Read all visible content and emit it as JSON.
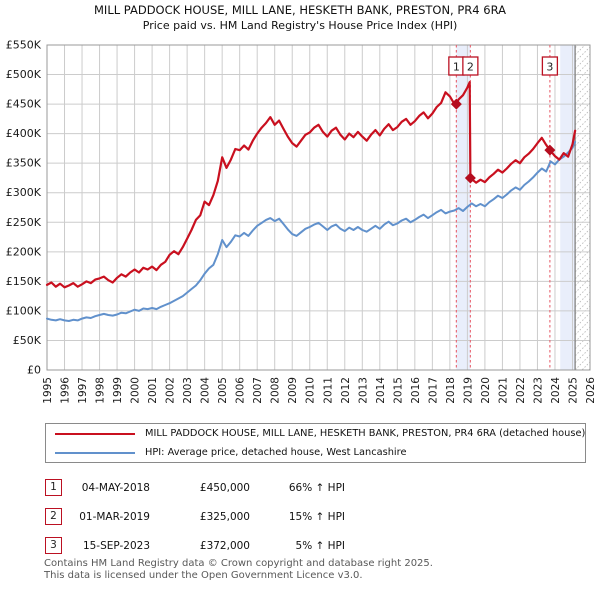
{
  "title": {
    "line1": "MILL PADDOCK HOUSE, MILL LANE, HESKETH BANK, PRESTON, PR4 6RA",
    "line2": "Price paid vs. HM Land Registry's House Price Index (HPI)"
  },
  "chart_data": {
    "type": "line",
    "xlim": [
      1995,
      2026
    ],
    "ylim": [
      0,
      550
    ],
    "grid": true,
    "x_ticks": [
      "1995",
      "1996",
      "1997",
      "1998",
      "1999",
      "2000",
      "2001",
      "2002",
      "2003",
      "2004",
      "2005",
      "2006",
      "2007",
      "2008",
      "2009",
      "2010",
      "2011",
      "2012",
      "2013",
      "2014",
      "2015",
      "2016",
      "2017",
      "2018",
      "2019",
      "2020",
      "2021",
      "2022",
      "2023",
      "2024",
      "2025",
      "2026"
    ],
    "x_tick_values": [
      1995,
      1996,
      1997,
      1998,
      1999,
      2000,
      2001,
      2002,
      2003,
      2004,
      2005,
      2006,
      2007,
      2008,
      2009,
      2010,
      2011,
      2012,
      2013,
      2014,
      2015,
      2016,
      2017,
      2018,
      2019,
      2020,
      2021,
      2022,
      2023,
      2024,
      2025,
      2026
    ],
    "y_ticks": [
      "£0",
      "£50K",
      "£100K",
      "£150K",
      "£200K",
      "£250K",
      "£300K",
      "£350K",
      "£400K",
      "£450K",
      "£500K",
      "£550K"
    ],
    "y_tick_values": [
      0,
      50,
      100,
      150,
      200,
      250,
      300,
      350,
      400,
      450,
      500,
      550
    ],
    "colors": {
      "price_line": "#c9101f",
      "hpi_line": "#6191cc",
      "marker": "#b50d1f",
      "dashed": "#e8636f",
      "band": "#e9eefb",
      "grid": "#cccccc",
      "frame": "#999999",
      "hatch": "#bbbbbb",
      "hatch_edge": "#8a8a8a"
    },
    "series": [
      {
        "name": "price-paid",
        "color": "#c9101f",
        "width": 2.2,
        "points": [
          [
            1995.0,
            144
          ],
          [
            1995.25,
            148
          ],
          [
            1995.5,
            141
          ],
          [
            1995.75,
            146
          ],
          [
            1996.0,
            140
          ],
          [
            1996.25,
            143
          ],
          [
            1996.5,
            147
          ],
          [
            1996.75,
            141
          ],
          [
            1997.0,
            145
          ],
          [
            1997.25,
            150
          ],
          [
            1997.5,
            147
          ],
          [
            1997.75,
            153
          ],
          [
            1998.0,
            155
          ],
          [
            1998.25,
            158
          ],
          [
            1998.5,
            152
          ],
          [
            1998.75,
            148
          ],
          [
            1999.0,
            156
          ],
          [
            1999.25,
            162
          ],
          [
            1999.5,
            158
          ],
          [
            1999.75,
            165
          ],
          [
            2000.0,
            170
          ],
          [
            2000.25,
            165
          ],
          [
            2000.5,
            173
          ],
          [
            2000.75,
            170
          ],
          [
            2001.0,
            175
          ],
          [
            2001.25,
            169
          ],
          [
            2001.5,
            178
          ],
          [
            2001.75,
            183
          ],
          [
            2002.0,
            195
          ],
          [
            2002.25,
            201
          ],
          [
            2002.5,
            196
          ],
          [
            2002.75,
            208
          ],
          [
            2003.0,
            222
          ],
          [
            2003.25,
            237
          ],
          [
            2003.5,
            254
          ],
          [
            2003.75,
            262
          ],
          [
            2004.0,
            285
          ],
          [
            2004.25,
            279
          ],
          [
            2004.5,
            296
          ],
          [
            2004.75,
            320
          ],
          [
            2005.0,
            360
          ],
          [
            2005.25,
            342
          ],
          [
            2005.5,
            356
          ],
          [
            2005.75,
            374
          ],
          [
            2006.0,
            372
          ],
          [
            2006.25,
            380
          ],
          [
            2006.5,
            373
          ],
          [
            2006.75,
            388
          ],
          [
            2007.0,
            400
          ],
          [
            2007.25,
            410
          ],
          [
            2007.5,
            418
          ],
          [
            2007.75,
            428
          ],
          [
            2008.0,
            415
          ],
          [
            2008.25,
            422
          ],
          [
            2008.5,
            408
          ],
          [
            2008.75,
            395
          ],
          [
            2009.0,
            384
          ],
          [
            2009.25,
            378
          ],
          [
            2009.5,
            388
          ],
          [
            2009.75,
            398
          ],
          [
            2010.0,
            402
          ],
          [
            2010.25,
            410
          ],
          [
            2010.5,
            415
          ],
          [
            2010.75,
            403
          ],
          [
            2011.0,
            395
          ],
          [
            2011.25,
            405
          ],
          [
            2011.5,
            410
          ],
          [
            2011.75,
            398
          ],
          [
            2012.0,
            390
          ],
          [
            2012.25,
            400
          ],
          [
            2012.5,
            394
          ],
          [
            2012.75,
            403
          ],
          [
            2013.0,
            395
          ],
          [
            2013.25,
            388
          ],
          [
            2013.5,
            398
          ],
          [
            2013.75,
            406
          ],
          [
            2014.0,
            397
          ],
          [
            2014.25,
            408
          ],
          [
            2014.5,
            416
          ],
          [
            2014.75,
            406
          ],
          [
            2015.0,
            411
          ],
          [
            2015.25,
            420
          ],
          [
            2015.5,
            425
          ],
          [
            2015.75,
            415
          ],
          [
            2016.0,
            421
          ],
          [
            2016.25,
            430
          ],
          [
            2016.5,
            436
          ],
          [
            2016.75,
            426
          ],
          [
            2017.0,
            434
          ],
          [
            2017.25,
            445
          ],
          [
            2017.5,
            452
          ],
          [
            2017.75,
            470
          ],
          [
            2018.0,
            463
          ],
          [
            2018.2,
            453
          ],
          [
            2018.37,
            450
          ],
          [
            2018.5,
            458
          ],
          [
            2018.75,
            465
          ],
          [
            2019.0,
            478
          ],
          [
            2019.13,
            487
          ],
          [
            2019.17,
            325
          ],
          [
            2019.5,
            317
          ],
          [
            2019.75,
            322
          ],
          [
            2020.0,
            318
          ],
          [
            2020.25,
            326
          ],
          [
            2020.5,
            332
          ],
          [
            2020.75,
            339
          ],
          [
            2021.0,
            334
          ],
          [
            2021.25,
            341
          ],
          [
            2021.5,
            349
          ],
          [
            2021.75,
            355
          ],
          [
            2022.0,
            350
          ],
          [
            2022.25,
            360
          ],
          [
            2022.5,
            366
          ],
          [
            2022.75,
            374
          ],
          [
            2023.0,
            384
          ],
          [
            2023.25,
            393
          ],
          [
            2023.5,
            381
          ],
          [
            2023.71,
            372
          ],
          [
            2024.0,
            362
          ],
          [
            2024.25,
            356
          ],
          [
            2024.5,
            367
          ],
          [
            2024.75,
            361
          ],
          [
            2025.0,
            382
          ],
          [
            2025.15,
            405
          ]
        ]
      },
      {
        "name": "hpi",
        "color": "#6191cc",
        "width": 2,
        "points": [
          [
            1995.0,
            87
          ],
          [
            1995.25,
            85
          ],
          [
            1995.5,
            84
          ],
          [
            1995.75,
            86
          ],
          [
            1996.0,
            84
          ],
          [
            1996.25,
            83
          ],
          [
            1996.5,
            85
          ],
          [
            1996.75,
            84
          ],
          [
            1997.0,
            87
          ],
          [
            1997.25,
            89
          ],
          [
            1997.5,
            88
          ],
          [
            1997.75,
            91
          ],
          [
            1998.0,
            93
          ],
          [
            1998.25,
            95
          ],
          [
            1998.5,
            93
          ],
          [
            1998.75,
            92
          ],
          [
            1999.0,
            94
          ],
          [
            1999.25,
            97
          ],
          [
            1999.5,
            96
          ],
          [
            1999.75,
            99
          ],
          [
            2000.0,
            102
          ],
          [
            2000.25,
            100
          ],
          [
            2000.5,
            104
          ],
          [
            2000.75,
            103
          ],
          [
            2001.0,
            105
          ],
          [
            2001.25,
            103
          ],
          [
            2001.5,
            107
          ],
          [
            2001.75,
            110
          ],
          [
            2002.0,
            113
          ],
          [
            2002.25,
            117
          ],
          [
            2002.5,
            121
          ],
          [
            2002.75,
            125
          ],
          [
            2003.0,
            131
          ],
          [
            2003.25,
            137
          ],
          [
            2003.5,
            143
          ],
          [
            2003.75,
            152
          ],
          [
            2004.0,
            163
          ],
          [
            2004.25,
            172
          ],
          [
            2004.5,
            178
          ],
          [
            2004.75,
            196
          ],
          [
            2005.0,
            220
          ],
          [
            2005.25,
            208
          ],
          [
            2005.5,
            217
          ],
          [
            2005.75,
            228
          ],
          [
            2006.0,
            226
          ],
          [
            2006.25,
            232
          ],
          [
            2006.5,
            227
          ],
          [
            2006.75,
            236
          ],
          [
            2007.0,
            244
          ],
          [
            2007.25,
            249
          ],
          [
            2007.5,
            254
          ],
          [
            2007.75,
            257
          ],
          [
            2008.0,
            252
          ],
          [
            2008.25,
            256
          ],
          [
            2008.5,
            247
          ],
          [
            2008.75,
            238
          ],
          [
            2009.0,
            230
          ],
          [
            2009.25,
            227
          ],
          [
            2009.5,
            233
          ],
          [
            2009.75,
            239
          ],
          [
            2010.0,
            242
          ],
          [
            2010.25,
            246
          ],
          [
            2010.5,
            249
          ],
          [
            2010.75,
            243
          ],
          [
            2011.0,
            237
          ],
          [
            2011.25,
            243
          ],
          [
            2011.5,
            246
          ],
          [
            2011.75,
            239
          ],
          [
            2012.0,
            235
          ],
          [
            2012.25,
            241
          ],
          [
            2012.5,
            237
          ],
          [
            2012.75,
            242
          ],
          [
            2013.0,
            237
          ],
          [
            2013.25,
            234
          ],
          [
            2013.5,
            239
          ],
          [
            2013.75,
            244
          ],
          [
            2014.0,
            239
          ],
          [
            2014.25,
            246
          ],
          [
            2014.5,
            251
          ],
          [
            2014.75,
            245
          ],
          [
            2015.0,
            248
          ],
          [
            2015.25,
            253
          ],
          [
            2015.5,
            256
          ],
          [
            2015.75,
            250
          ],
          [
            2016.0,
            254
          ],
          [
            2016.25,
            259
          ],
          [
            2016.5,
            263
          ],
          [
            2016.75,
            257
          ],
          [
            2017.0,
            262
          ],
          [
            2017.25,
            267
          ],
          [
            2017.5,
            271
          ],
          [
            2017.75,
            265
          ],
          [
            2018.0,
            268
          ],
          [
            2018.25,
            270
          ],
          [
            2018.5,
            274
          ],
          [
            2018.75,
            269
          ],
          [
            2019.0,
            276
          ],
          [
            2019.25,
            282
          ],
          [
            2019.5,
            277
          ],
          [
            2019.75,
            281
          ],
          [
            2020.0,
            277
          ],
          [
            2020.25,
            284
          ],
          [
            2020.5,
            289
          ],
          [
            2020.75,
            295
          ],
          [
            2021.0,
            291
          ],
          [
            2021.25,
            297
          ],
          [
            2021.5,
            304
          ],
          [
            2021.75,
            309
          ],
          [
            2022.0,
            305
          ],
          [
            2022.25,
            313
          ],
          [
            2022.5,
            319
          ],
          [
            2022.75,
            326
          ],
          [
            2023.0,
            334
          ],
          [
            2023.25,
            341
          ],
          [
            2023.5,
            336
          ],
          [
            2023.75,
            353
          ],
          [
            2024.0,
            348
          ],
          [
            2024.25,
            356
          ],
          [
            2024.5,
            361
          ],
          [
            2024.75,
            368
          ],
          [
            2025.0,
            376
          ],
          [
            2025.15,
            386
          ]
        ]
      }
    ],
    "sales": [
      {
        "label": "1",
        "x": 2018.37,
        "y": 450
      },
      {
        "label": "2",
        "x": 2019.17,
        "y": 325
      },
      {
        "label": "3",
        "x": 2023.71,
        "y": 372
      }
    ],
    "bands": [
      [
        2018.37,
        2019.17
      ],
      [
        2024.3,
        2025.15
      ]
    ],
    "hatch_from": 2025.15
  },
  "legend": {
    "items": [
      {
        "label": "MILL PADDOCK HOUSE, MILL LANE, HESKETH BANK, PRESTON, PR4 6RA (detached house)",
        "color": "#c9101f"
      },
      {
        "label": "HPI: Average price, detached house, West Lancashire",
        "color": "#6191cc"
      }
    ]
  },
  "transactions": [
    {
      "num": "1",
      "date": "04-MAY-2018",
      "price": "£450,000",
      "hpi": "66% ↑ HPI"
    },
    {
      "num": "2",
      "date": "01-MAR-2019",
      "price": "£325,000",
      "hpi": "15% ↑ HPI"
    },
    {
      "num": "3",
      "date": "15-SEP-2023",
      "price": "£372,000",
      "hpi": "5% ↑ HPI"
    }
  ],
  "footer": {
    "line1": "Contains HM Land Registry data © Crown copyright and database right 2025.",
    "line2": "This data is licensed under the Open Government Licence v3.0."
  }
}
